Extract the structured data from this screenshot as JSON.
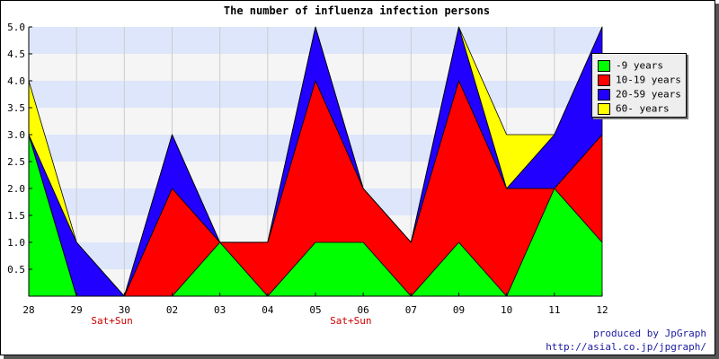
{
  "chart_data": {
    "type": "area",
    "stacked": true,
    "title": "The number of influenza infection persons",
    "categories": [
      "28",
      "29",
      "30",
      "02",
      "03",
      "04",
      "05",
      "06",
      "07",
      "09",
      "10",
      "11",
      "12"
    ],
    "weekend_labels": [
      "",
      "Sat+Sun",
      "",
      "",
      "",
      "",
      "Sat+Sun",
      "",
      "",
      "",
      "",
      "",
      ""
    ],
    "series": [
      {
        "name": "-9 years",
        "color": "#00ff00",
        "values": [
          3,
          0,
          0,
          0,
          1,
          0,
          1,
          1,
          0,
          1,
          0,
          2,
          1
        ]
      },
      {
        "name": "10-19 years",
        "color": "#ff0000",
        "values": [
          0,
          0,
          0,
          2,
          0,
          1,
          3,
          1,
          1,
          3,
          2,
          0,
          2
        ]
      },
      {
        "name": "20-59 years",
        "color": "#2200ff",
        "values": [
          0,
          1,
          0,
          1,
          0,
          0,
          1,
          0,
          0,
          1,
          0,
          1,
          2
        ]
      },
      {
        "name": "60- years",
        "color": "#ffff00",
        "values": [
          1,
          0,
          0,
          0,
          0,
          0,
          0,
          0,
          0,
          0,
          1,
          0,
          0
        ]
      }
    ],
    "yticks": [
      "0.5",
      "1.0",
      "1.5",
      "2.0",
      "2.5",
      "3.0",
      "3.5",
      "4.0",
      "4.5",
      "5.0"
    ],
    "ylim": [
      0,
      5
    ],
    "grid": "horizontal bands",
    "legend_position": "right"
  },
  "footer": {
    "line1": "produced by JpGraph",
    "line2": "http://asial.co.jp/jpgraph/"
  },
  "colors": {
    "band": "#dde6fa",
    "band_alt": "#f5f5f5",
    "weekend_text": "#cc0000",
    "footer_text": "#1a1aa0"
  }
}
